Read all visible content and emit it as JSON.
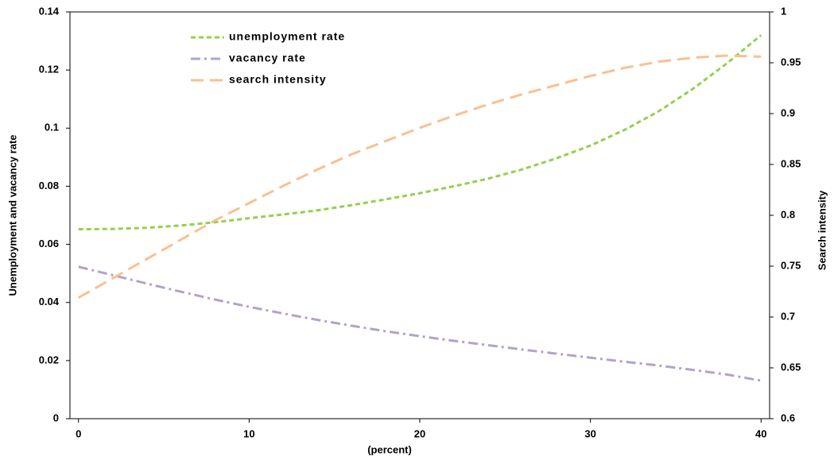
{
  "chart_data": {
    "type": "line",
    "x_label": "(percent)",
    "y_label": "Unemployment and vacancy rate",
    "y2_label": "Search intensity",
    "x": [
      0,
      2,
      4,
      6,
      8,
      10,
      12,
      14,
      16,
      18,
      20,
      22,
      24,
      26,
      28,
      30,
      32,
      34,
      36,
      38,
      40
    ],
    "xlim": [
      -0.5,
      40.5
    ],
    "xticks": [
      0,
      10,
      20,
      30,
      40
    ],
    "ylim": [
      0,
      0.14
    ],
    "yticks": [
      0,
      0.02,
      0.04,
      0.06,
      0.08,
      0.1,
      0.12,
      0.14
    ],
    "y2lim": [
      0.6,
      1
    ],
    "y2ticks": [
      0.6,
      0.65,
      0.7,
      0.75,
      0.8,
      0.85,
      0.9,
      0.95,
      1
    ],
    "grid": false,
    "legend": "upper left",
    "series": [
      {
        "name": "unemployment rate",
        "color": "#92d050",
        "dash": "6,4",
        "values": [
          0.0652,
          0.0653,
          0.0657,
          0.0665,
          0.0676,
          0.069,
          0.0703,
          0.0717,
          0.0735,
          0.0755,
          0.0776,
          0.08,
          0.0826,
          0.0858,
          0.0896,
          0.094,
          0.0994,
          0.1058,
          0.1135,
          0.1223,
          0.132
        ]
      },
      {
        "name": "vacancy rate",
        "color": "#b3a2c7",
        "dash": "12,5,3,5",
        "values": [
          0.0523,
          0.0494,
          0.0465,
          0.0437,
          0.041,
          0.0385,
          0.0362,
          0.034,
          0.032,
          0.0301,
          0.0284,
          0.0268,
          0.0253,
          0.0238,
          0.0224,
          0.021,
          0.0196,
          0.0183,
          0.0168,
          0.0152,
          0.0131
        ]
      },
      {
        "name": "search intensity",
        "color": "#fac090",
        "dash": "16,8",
        "axis": "y2",
        "values": [
          0.719,
          0.738,
          0.757,
          0.776,
          0.795,
          0.812,
          0.829,
          0.845,
          0.86,
          0.873,
          0.886,
          0.898,
          0.909,
          0.919,
          0.928,
          0.937,
          0.945,
          0.951,
          0.955,
          0.957,
          0.956
        ]
      }
    ]
  }
}
